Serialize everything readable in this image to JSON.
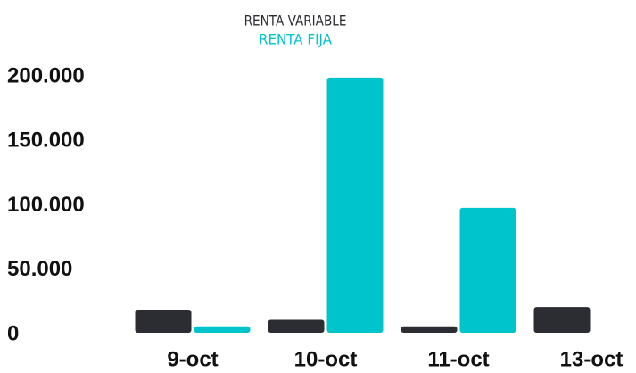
{
  "chart_data": {
    "type": "bar",
    "categories": [
      "9-oct",
      "10-oct",
      "11-oct",
      "13-oct"
    ],
    "series": [
      {
        "name": "RENTA VARIABLE",
        "color": "#2b2d33",
        "values": [
          18000,
          10000,
          5000,
          20000
        ]
      },
      {
        "name": "RENTA FIJA",
        "color": "#00c4cc",
        "values": [
          5000,
          198000,
          97000,
          null
        ]
      }
    ],
    "ylim": [
      0,
      200000
    ],
    "yticks": [
      0,
      {
        "value": 50000,
        "label": "50.000"
      },
      {
        "value": 100000,
        "label": "100.000"
      },
      {
        "value": 150000,
        "label": "150.000"
      },
      {
        "value": 200000,
        "label": "200.000"
      }
    ],
    "grid": false
  }
}
